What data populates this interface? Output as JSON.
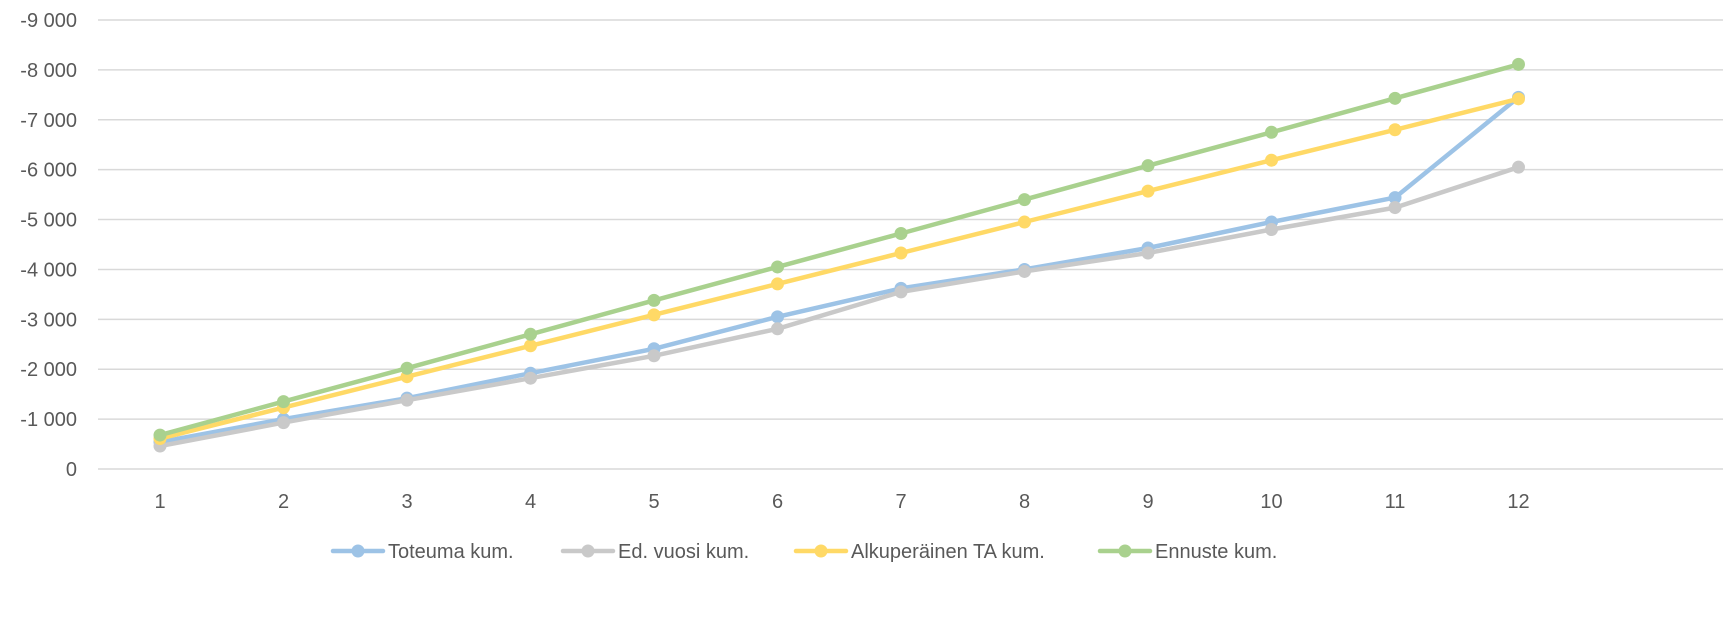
{
  "chart_data": {
    "type": "line",
    "title": "",
    "xlabel": "",
    "ylabel": "",
    "categories": [
      "1",
      "2",
      "3",
      "4",
      "5",
      "6",
      "7",
      "8",
      "9",
      "10",
      "11",
      "12"
    ],
    "ylim": [
      0,
      -9000
    ],
    "yticks": [
      0,
      -1000,
      -2000,
      -3000,
      -4000,
      -5000,
      -6000,
      -7000,
      -8000,
      -9000
    ],
    "ytick_labels": [
      "0",
      "-1 000",
      "-2 000",
      "-3 000",
      "-4 000",
      "-5 000",
      "-6 000",
      "-7 000",
      "-8 000",
      "-9 000"
    ],
    "grid": true,
    "legend_position": "bottom",
    "series": [
      {
        "name": "Toteuma kum.",
        "color": "#9DC3E6",
        "values": [
          -540,
          -1000,
          -1420,
          -1920,
          -2410,
          -3050,
          -3620,
          -4000,
          -4430,
          -4950,
          -5440,
          -7450
        ]
      },
      {
        "name": "Ed. vuosi kum.",
        "color": "#C9C9C9",
        "values": [
          -460,
          -930,
          -1380,
          -1820,
          -2270,
          -2810,
          -3550,
          -3960,
          -4330,
          -4800,
          -5240,
          -6050
        ]
      },
      {
        "name": "Alkuperäinen TA kum.",
        "color": "#FFD966",
        "values": [
          -610,
          -1230,
          -1850,
          -2470,
          -3090,
          -3710,
          -4330,
          -4950,
          -5570,
          -6190,
          -6800,
          -7420
        ]
      },
      {
        "name": "Ennuste kum.",
        "color": "#A9D18E",
        "values": [
          -680,
          -1350,
          -2020,
          -2700,
          -3380,
          -4050,
          -4720,
          -5400,
          -6080,
          -6750,
          -7430,
          -8110
        ]
      }
    ]
  }
}
